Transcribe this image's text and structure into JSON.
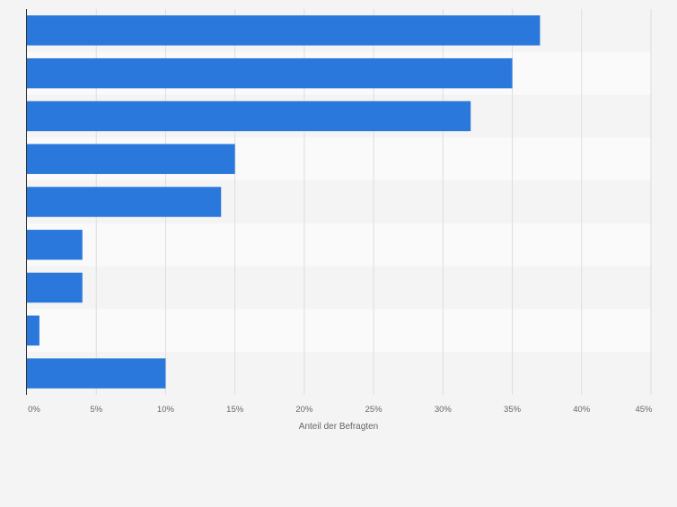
{
  "chart_data": {
    "type": "bar",
    "orientation": "horizontal",
    "categories": [
      "",
      "",
      "",
      "",
      "",
      "",
      "",
      "",
      ""
    ],
    "values": [
      37,
      35,
      32,
      15,
      14,
      4,
      4,
      0.9,
      10
    ],
    "xlim": [
      0,
      45
    ],
    "xticks": [
      0,
      5,
      10,
      15,
      20,
      25,
      30,
      35,
      40,
      45
    ],
    "xtick_labels": [
      "0%",
      "5%",
      "10%",
      "15%",
      "20%",
      "25%",
      "30%",
      "35%",
      "40%",
      "45%"
    ],
    "xlabel": "Anteil der Befragten",
    "ylabel": "",
    "title": "",
    "grid": true,
    "bar_color": "#2a78dc",
    "band_colors": [
      "#f4f4f4",
      "#fafafa"
    ]
  }
}
